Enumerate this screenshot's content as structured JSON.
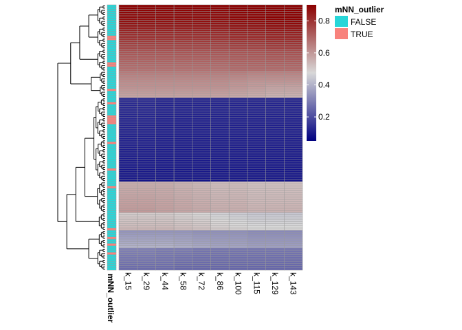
{
  "chart_data": {
    "type": "heatmap",
    "columns": [
      "k_15",
      "k_29",
      "k_44",
      "k_58",
      "k_72",
      "k_86",
      "k_100",
      "k_115",
      "k_129",
      "k_143"
    ],
    "annotation": {
      "name": "mNN_outlier",
      "levels": [
        {
          "label": "FALSE",
          "color": "#28d6d8"
        },
        {
          "label": "TRUE",
          "color": "#f8827c"
        }
      ]
    },
    "colorbar": {
      "range": [
        0.05,
        0.9
      ],
      "ticks": [
        0.2,
        0.4,
        0.6,
        0.8
      ],
      "tick_labels": [
        "0.2",
        "0.4",
        "0.6",
        "0.8"
      ],
      "low_color": "#000080",
      "mid_color": "#d8d8d8",
      "high_color": "#8b0000"
    },
    "row_blocks": [
      {
        "rows": 10,
        "start": [
          0.9,
          0.9,
          0.9,
          0.9,
          0.9,
          0.9,
          0.91,
          0.91,
          0.92,
          0.92
        ],
        "end": [
          0.86,
          0.86,
          0.86,
          0.86,
          0.86,
          0.86,
          0.87,
          0.87,
          0.88,
          0.88
        ]
      },
      {
        "rows": 10,
        "start": [
          0.84,
          0.84,
          0.84,
          0.84,
          0.84,
          0.84,
          0.85,
          0.85,
          0.86,
          0.86
        ],
        "end": [
          0.76,
          0.76,
          0.76,
          0.76,
          0.76,
          0.76,
          0.77,
          0.77,
          0.78,
          0.78
        ]
      },
      {
        "rows": 10,
        "start": [
          0.74,
          0.74,
          0.74,
          0.74,
          0.74,
          0.74,
          0.74,
          0.74,
          0.75,
          0.75
        ],
        "end": [
          0.68,
          0.68,
          0.68,
          0.68,
          0.68,
          0.68,
          0.69,
          0.69,
          0.69,
          0.69
        ]
      },
      {
        "rows": 6,
        "start": [
          0.66,
          0.66,
          0.66,
          0.66,
          0.66,
          0.66,
          0.66,
          0.65,
          0.65,
          0.65
        ],
        "end": [
          0.62,
          0.62,
          0.62,
          0.62,
          0.62,
          0.62,
          0.61,
          0.6,
          0.6,
          0.6
        ]
      },
      {
        "rows": 6,
        "start": [
          0.62,
          0.62,
          0.62,
          0.62,
          0.62,
          0.62,
          0.61,
          0.6,
          0.59,
          0.59
        ],
        "end": [
          0.58,
          0.58,
          0.58,
          0.58,
          0.58,
          0.58,
          0.57,
          0.56,
          0.55,
          0.55
        ]
      },
      {
        "rows": 38,
        "start": [
          0.13,
          0.13,
          0.12,
          0.12,
          0.12,
          0.12,
          0.12,
          0.12,
          0.12,
          0.12
        ],
        "end": [
          0.09,
          0.09,
          0.09,
          0.09,
          0.09,
          0.09,
          0.09,
          0.09,
          0.09,
          0.09
        ]
      },
      {
        "rows": 14,
        "start": [
          0.56,
          0.56,
          0.56,
          0.55,
          0.54,
          0.53,
          0.53,
          0.52,
          0.52,
          0.52
        ],
        "end": [
          0.6,
          0.6,
          0.59,
          0.58,
          0.57,
          0.56,
          0.56,
          0.55,
          0.55,
          0.55
        ]
      },
      {
        "rows": 8,
        "start": [
          0.5,
          0.5,
          0.5,
          0.49,
          0.48,
          0.46,
          0.45,
          0.44,
          0.44,
          0.44
        ],
        "end": [
          0.54,
          0.54,
          0.54,
          0.53,
          0.52,
          0.5,
          0.49,
          0.48,
          0.48,
          0.48
        ]
      },
      {
        "rows": 8,
        "start": [
          0.34,
          0.34,
          0.34,
          0.34,
          0.33,
          0.33,
          0.33,
          0.32,
          0.32,
          0.32
        ],
        "end": [
          0.4,
          0.4,
          0.4,
          0.39,
          0.38,
          0.37,
          0.37,
          0.36,
          0.36,
          0.36
        ]
      },
      {
        "rows": 10,
        "start": [
          0.3,
          0.3,
          0.29,
          0.29,
          0.28,
          0.28,
          0.28,
          0.28,
          0.28,
          0.28
        ],
        "end": [
          0.26,
          0.26,
          0.26,
          0.25,
          0.25,
          0.25,
          0.25,
          0.25,
          0.25,
          0.25
        ]
      }
    ],
    "outlier_rows": [
      14,
      15,
      26,
      27,
      38,
      44,
      50,
      51,
      52,
      53,
      62,
      74,
      82,
      101,
      105,
      108,
      112,
      120,
      128,
      133,
      135
    ]
  }
}
